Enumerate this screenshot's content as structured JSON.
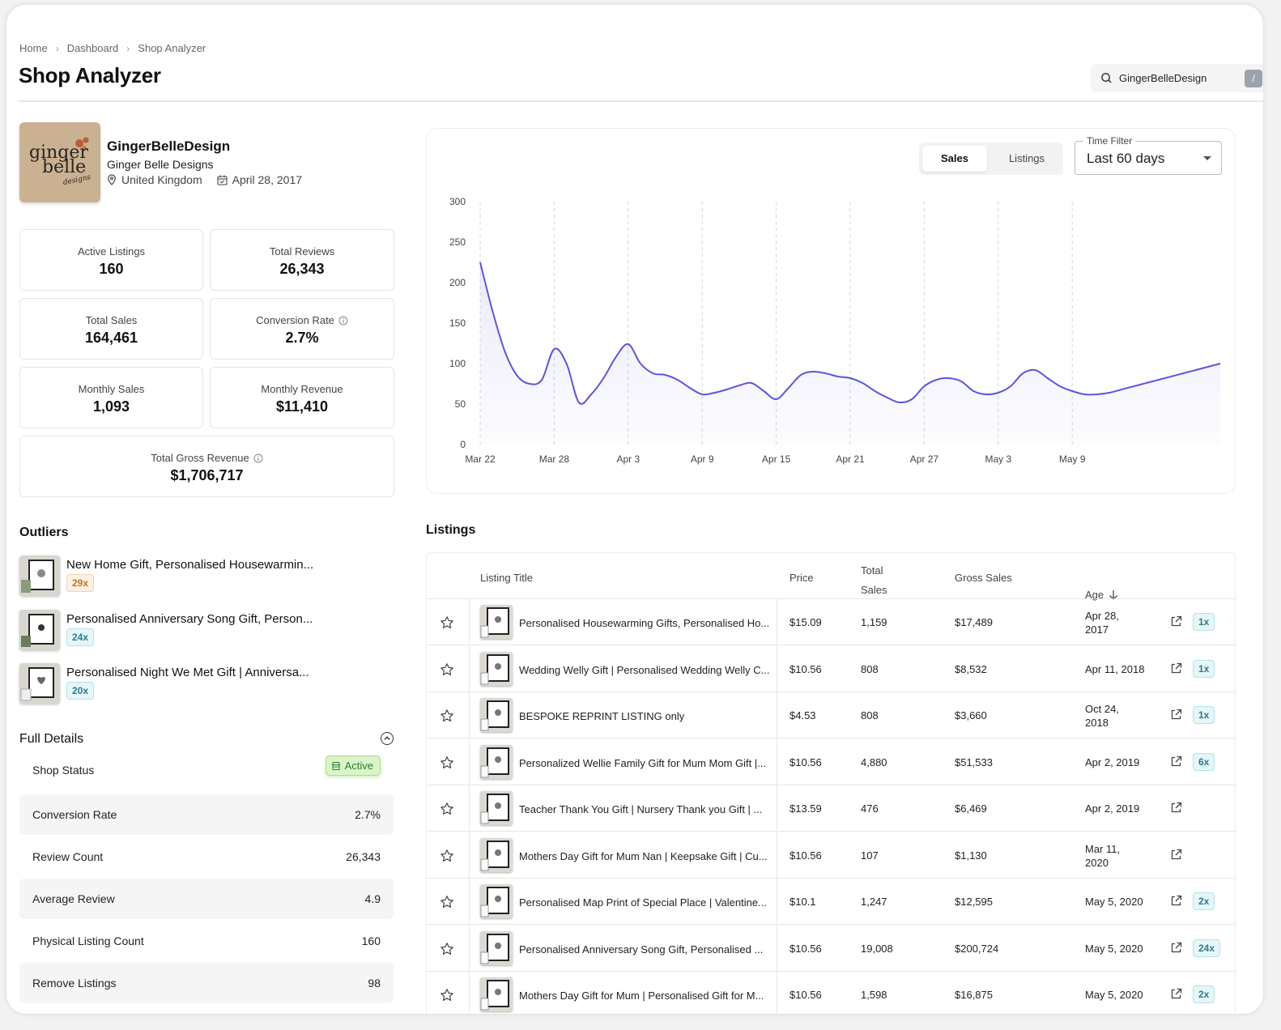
{
  "breadcrumb": [
    "Home",
    "Dashboard",
    "Shop Analyzer"
  ],
  "page_title": "Shop Analyzer",
  "search": {
    "value": "GingerBelleDesign",
    "shortcut": "/"
  },
  "shop": {
    "name": "GingerBelleDesign",
    "display_name": "Ginger Belle Designs",
    "location": "United Kingdom",
    "joined": "April 28, 2017",
    "logo_text": [
      "ginger",
      "belle",
      "designs"
    ]
  },
  "stats": {
    "active_listings": {
      "label": "Active Listings",
      "value": "160"
    },
    "total_reviews": {
      "label": "Total Reviews",
      "value": "26,343"
    },
    "total_sales": {
      "label": "Total Sales",
      "value": "164,461"
    },
    "conversion_rate": {
      "label": "Conversion Rate",
      "value": "2.7%"
    },
    "monthly_sales": {
      "label": "Monthly Sales",
      "value": "1,093"
    },
    "monthly_revenue": {
      "label": "Monthly Revenue",
      "value": "$11,410"
    },
    "total_gross_revenue": {
      "label": "Total Gross Revenue",
      "value": "$1,706,717"
    }
  },
  "outliers": {
    "title": "Outliers",
    "items": [
      {
        "title": "New Home Gift, Personalised Housewarmin...",
        "multiplier": "29x",
        "tone": "orange"
      },
      {
        "title": "Personalised Anniversary Song Gift, Person...",
        "multiplier": "24x",
        "tone": "teal"
      },
      {
        "title": "Personalised Night We Met Gift | Anniversa...",
        "multiplier": "20x",
        "tone": "teal"
      }
    ]
  },
  "full_details": {
    "title": "Full Details",
    "shop_status_label": "Shop Status",
    "shop_status_value": "Active",
    "rows": [
      {
        "key": "Conversion Rate",
        "value": "2.7%"
      },
      {
        "key": "Review Count",
        "value": "26,343"
      },
      {
        "key": "Average Review",
        "value": "4.9"
      },
      {
        "key": "Physical Listing Count",
        "value": "160"
      },
      {
        "key": "Remove Listings",
        "value": "98"
      }
    ]
  },
  "chart_controls": {
    "tabs": [
      "Sales",
      "Listings"
    ],
    "active_tab": "Sales",
    "time_filter_label": "Time Filter",
    "time_filter_value": "Last 60 days"
  },
  "chart_data": {
    "type": "area",
    "x_ticks": [
      "Mar 22",
      "Mar 28",
      "Apr 3",
      "Apr 9",
      "Apr 15",
      "Apr 21",
      "Apr 27",
      "May 3",
      "May 9"
    ],
    "ylim": [
      0,
      300
    ],
    "y_ticks": [
      0,
      50,
      100,
      150,
      200,
      250,
      300
    ],
    "grid": "vertical dashed",
    "color": "#5b55e0",
    "series": [
      {
        "x": [
          "Mar 22",
          "Mar 23",
          "Mar 24",
          "Mar 25",
          "Mar 26",
          "Mar 27",
          "Mar 28",
          "Mar 29",
          "Mar 30",
          "Mar 31",
          "Apr 1",
          "Apr 2",
          "Apr 3",
          "Apr 4",
          "Apr 5",
          "Apr 6",
          "Apr 7",
          "Apr 8",
          "Apr 9",
          "Apr 10",
          "Apr 11",
          "Apr 12",
          "Apr 13",
          "Apr 14",
          "Apr 15",
          "Apr 16",
          "Apr 17",
          "Apr 18",
          "Apr 19",
          "Apr 20",
          "Apr 21",
          "Apr 22",
          "Apr 23",
          "Apr 24",
          "Apr 25",
          "Apr 26",
          "Apr 27",
          "Apr 28",
          "Apr 29",
          "Apr 30",
          "May 1",
          "May 2",
          "May 3",
          "May 4",
          "May 5",
          "May 6",
          "May 7",
          "May 8",
          "May 9",
          "May 10",
          "May 11",
          "May 12",
          "May 13",
          "May 14",
          "May 15",
          "May 16",
          "May 17",
          "May 18",
          "May 19",
          "May 20",
          "May 21"
        ],
        "values": [
          225,
          165,
          115,
          85,
          75,
          80,
          118,
          100,
          52,
          62,
          82,
          108,
          124,
          100,
          88,
          86,
          80,
          70,
          62,
          64,
          68,
          73,
          76,
          66,
          56,
          70,
          86,
          90,
          88,
          84,
          82,
          76,
          66,
          58,
          52,
          56,
          72,
          80,
          82,
          78,
          66,
          62,
          64,
          72,
          88,
          92,
          82,
          72,
          66,
          62,
          62,
          64,
          68,
          72,
          76,
          80,
          84,
          88,
          92,
          96,
          100
        ]
      }
    ]
  },
  "listings": {
    "title": "Listings",
    "columns": {
      "title": "Listing Title",
      "price": "Price",
      "total_sales": [
        "Total",
        "Sales"
      ],
      "gross": "Gross Sales",
      "age": "Age"
    },
    "rows": [
      {
        "title": "Personalised Housewarming Gifts, Personalised Ho...",
        "price": "$15.09",
        "sales": "1,159",
        "gross": "$17,489",
        "age": [
          "Apr 28,",
          "2017"
        ],
        "mult": "1x"
      },
      {
        "title": "Wedding Welly Gift | Personalised Wedding Welly C...",
        "price": "$10.56",
        "sales": "808",
        "gross": "$8,532",
        "age": [
          "Apr 11, 2018"
        ],
        "mult": "1x"
      },
      {
        "title": "BESPOKE REPRINT LISTING only",
        "price": "$4.53",
        "sales": "808",
        "gross": "$3,660",
        "age": [
          "Oct 24,",
          "2018"
        ],
        "mult": "1x"
      },
      {
        "title": "Personalized Wellie Family Gift for Mum Mom Gift |...",
        "price": "$10.56",
        "sales": "4,880",
        "gross": "$51,533",
        "age": [
          "Apr 2, 2019"
        ],
        "mult": "6x"
      },
      {
        "title": "Teacher Thank You Gift | Nursery Thank you Gift | ...",
        "price": "$13.59",
        "sales": "476",
        "gross": "$6,469",
        "age": [
          "Apr 2, 2019"
        ],
        "mult": ""
      },
      {
        "title": "Mothers Day Gift for Mum Nan | Keepsake Gift | Cu...",
        "price": "$10.56",
        "sales": "107",
        "gross": "$1,130",
        "age": [
          "Mar 11,",
          "2020"
        ],
        "mult": ""
      },
      {
        "title": "Personalised Map Print of Special Place | Valentine...",
        "price": "$10.1",
        "sales": "1,247",
        "gross": "$12,595",
        "age": [
          "May 5, 2020"
        ],
        "mult": "2x"
      },
      {
        "title": "Personalised Anniversary Song Gift, Personalised ...",
        "price": "$10.56",
        "sales": "19,008",
        "gross": "$200,724",
        "age": [
          "May 5, 2020"
        ],
        "mult": "24x"
      },
      {
        "title": "Mothers Day Gift for Mum | Personalised Gift for M...",
        "price": "$10.56",
        "sales": "1,598",
        "gross": "$16,875",
        "age": [
          "May 5, 2020"
        ],
        "mult": "2x"
      }
    ]
  }
}
